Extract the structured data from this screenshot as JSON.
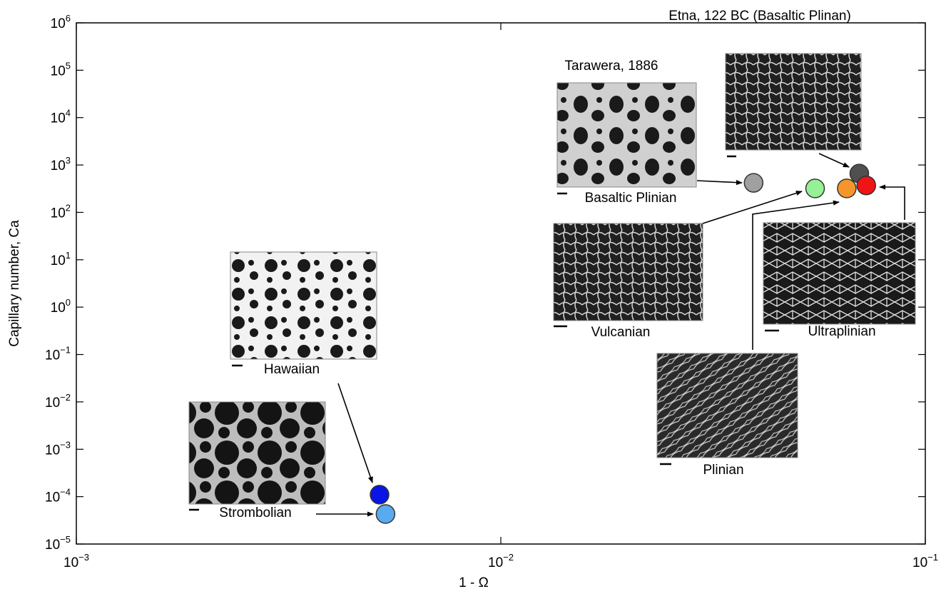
{
  "chart_data": {
    "type": "scatter",
    "x_label": "1 - Ω",
    "y_label": "Capillary number, Ca",
    "x_scale": "log",
    "y_scale": "log",
    "xlim": [
      0.001,
      0.1
    ],
    "ylim": [
      1e-05,
      1000000
    ],
    "xticks": [
      {
        "value": 0.001,
        "label": "10",
        "exponent": "−3"
      },
      {
        "value": 0.01,
        "label": "10",
        "exponent": "−2"
      },
      {
        "value": 0.1,
        "label": "10",
        "exponent": "−1"
      }
    ],
    "yticks": [
      {
        "value": 1e-05,
        "label": "10",
        "exponent": "−5"
      },
      {
        "value": 0.0001,
        "label": "10",
        "exponent": "−4"
      },
      {
        "value": 0.001,
        "label": "10",
        "exponent": "−3"
      },
      {
        "value": 0.01,
        "label": "10",
        "exponent": "−2"
      },
      {
        "value": 0.1,
        "label": "10",
        "exponent": "−1"
      },
      {
        "value": 1,
        "label": "10",
        "exponent": "0"
      },
      {
        "value": 10,
        "label": "10",
        "exponent": "1"
      },
      {
        "value": 100,
        "label": "10",
        "exponent": "2"
      },
      {
        "value": 1000,
        "label": "10",
        "exponent": "3"
      },
      {
        "value": 10000,
        "label": "10",
        "exponent": "4"
      },
      {
        "value": 100000,
        "label": "10",
        "exponent": "5"
      },
      {
        "value": 1000000,
        "label": "10",
        "exponent": "6"
      }
    ],
    "series": [
      {
        "x": [
          0.00518,
          0.00535,
          0.0394,
          0.055,
          0.0699,
          0.0653,
          0.0726
        ],
        "values": [
          0.00011,
          4.3e-05,
          420,
          320,
          660,
          320,
          370
        ],
        "colors": [
          "#0a14e6",
          "#5aaaf0",
          "#a0a0a0",
          "#96f096",
          "#505050",
          "#f5962d",
          "#f01414"
        ]
      }
    ],
    "annotations": [
      "Etna, 122 BC (Basaltic Plinan)",
      "Tarawera, 1886",
      "Basaltic Plinian",
      "Vulcanian",
      "Ultraplinian",
      "Hawaiian",
      "Plinian",
      "Strombolian"
    ]
  }
}
